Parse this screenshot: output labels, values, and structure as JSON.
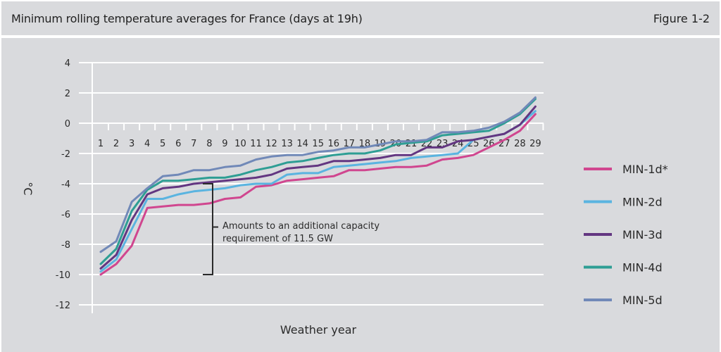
{
  "header": {
    "title": "Minimum rolling temperature averages for France (days at 19h)",
    "figure_label": "Figure 1-2"
  },
  "chart_data": {
    "type": "line",
    "title": "Minimum rolling temperature averages for France (days at 19h)",
    "xlabel": "Weather year",
    "ylabel": "°C",
    "ylim": [
      -12,
      4
    ],
    "yticks": [
      4,
      2,
      0,
      -2,
      -4,
      -6,
      -8,
      -10,
      -12
    ],
    "grid": true,
    "legend_position": "right",
    "x": [
      1,
      2,
      3,
      4,
      5,
      6,
      7,
      8,
      9,
      10,
      11,
      12,
      13,
      14,
      15,
      16,
      17,
      18,
      19,
      20,
      21,
      22,
      23,
      24,
      25,
      26,
      27,
      28,
      29
    ],
    "series": [
      {
        "name": "MIN-1d*",
        "color": "#d0468f",
        "values": [
          -10.0,
          -9.3,
          -8.1,
          -5.6,
          -5.5,
          -5.4,
          -5.4,
          -5.3,
          -5.0,
          -4.9,
          -4.2,
          -4.1,
          -3.8,
          -3.7,
          -3.6,
          -3.5,
          -3.1,
          -3.1,
          -3.0,
          -2.9,
          -2.9,
          -2.8,
          -2.4,
          -2.3,
          -2.1,
          -1.6,
          -1.1,
          -0.5,
          0.6
        ]
      },
      {
        "name": "MIN-2d",
        "color": "#5ab4e0",
        "values": [
          -9.8,
          -9.0,
          -7.0,
          -5.0,
          -5.0,
          -4.7,
          -4.5,
          -4.4,
          -4.3,
          -4.1,
          -4.0,
          -4.0,
          -3.4,
          -3.3,
          -3.3,
          -2.9,
          -2.8,
          -2.7,
          -2.6,
          -2.5,
          -2.3,
          -2.2,
          -2.1,
          -2.0,
          -1.1,
          -0.9,
          -0.7,
          -0.1,
          0.8
        ]
      },
      {
        "name": "MIN-3d",
        "color": "#633681",
        "values": [
          -9.6,
          -8.7,
          -6.4,
          -4.7,
          -4.3,
          -4.2,
          -4.0,
          -3.9,
          -3.8,
          -3.7,
          -3.6,
          -3.4,
          -3.0,
          -2.9,
          -2.8,
          -2.5,
          -2.5,
          -2.4,
          -2.3,
          -2.1,
          -2.1,
          -1.6,
          -1.6,
          -1.2,
          -1.1,
          -0.9,
          -0.7,
          -0.1,
          1.1
        ]
      },
      {
        "name": "MIN-4d",
        "color": "#2e9e94",
        "values": [
          -9.3,
          -8.3,
          -5.8,
          -4.4,
          -3.8,
          -3.8,
          -3.7,
          -3.6,
          -3.6,
          -3.4,
          -3.1,
          -2.9,
          -2.6,
          -2.5,
          -2.3,
          -2.1,
          -2.0,
          -2.0,
          -1.8,
          -1.4,
          -1.3,
          -1.2,
          -0.8,
          -0.7,
          -0.6,
          -0.5,
          -0.0,
          0.6,
          1.6
        ]
      },
      {
        "name": "MIN-5d",
        "color": "#7189b8",
        "values": [
          -8.5,
          -7.8,
          -5.2,
          -4.3,
          -3.5,
          -3.4,
          -3.1,
          -3.1,
          -2.9,
          -2.8,
          -2.4,
          -2.2,
          -2.1,
          -2.1,
          -1.9,
          -1.8,
          -1.6,
          -1.6,
          -1.4,
          -1.2,
          -1.2,
          -1.1,
          -0.6,
          -0.6,
          -0.5,
          -0.3,
          0.1,
          0.7,
          1.7
        ]
      }
    ],
    "annotation": {
      "lines": [
        "Amounts to an additional capacity",
        "requirement of 11.5 GW"
      ],
      "bracket_from": -4.0,
      "bracket_to": -10.0,
      "bracket_at_x": 8
    }
  }
}
